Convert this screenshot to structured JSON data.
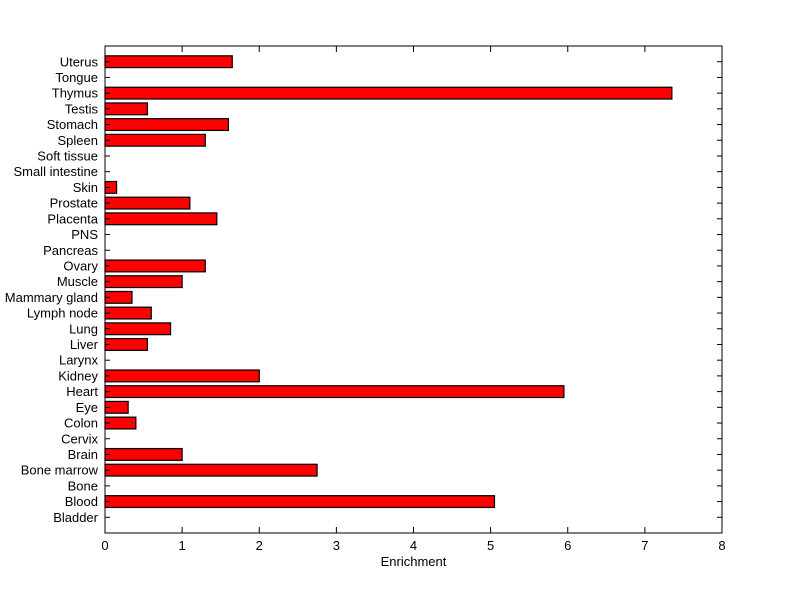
{
  "figure": {
    "background_color": "#ffffff",
    "title": ""
  },
  "chart_data": {
    "type": "bar",
    "orientation": "horizontal",
    "title": "",
    "xlabel": "Enrichment",
    "ylabel": "",
    "xlim": [
      0,
      8
    ],
    "x_ticks": [
      0,
      1,
      2,
      3,
      4,
      5,
      6,
      7,
      8
    ],
    "grid": false,
    "legend": null,
    "bar_color": "#ff0000",
    "bar_edge_color": "#000000",
    "axis_color": "#000000",
    "text_color": "#000000",
    "categories": [
      "Uterus",
      "Tongue",
      "Thymus",
      "Testis",
      "Stomach",
      "Spleen",
      "Soft tissue",
      "Small intestine",
      "Skin",
      "Prostate",
      "Placenta",
      "PNS",
      "Pancreas",
      "Ovary",
      "Muscle",
      "Mammary gland",
      "Lymph node",
      "Lung",
      "Liver",
      "Larynx",
      "Kidney",
      "Heart",
      "Eye",
      "Colon",
      "Cervix",
      "Brain",
      "Bone marrow",
      "Bone",
      "Blood",
      "Bladder"
    ],
    "values": [
      1.65,
      0,
      7.35,
      0.55,
      1.6,
      1.3,
      0,
      0,
      0.15,
      1.1,
      1.45,
      0,
      0,
      1.3,
      1.0,
      0.35,
      0.6,
      0.85,
      0.55,
      0,
      2.0,
      5.95,
      0.3,
      0.4,
      0,
      1.0,
      2.75,
      0,
      5.05,
      0
    ]
  }
}
